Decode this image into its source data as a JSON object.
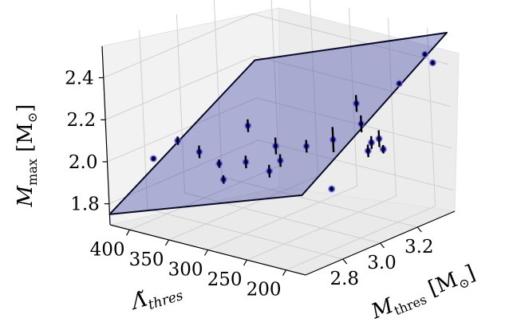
{
  "chart_data": {
    "type": "scatter3d",
    "title": "",
    "x_axis": {
      "label_main": "M",
      "label_sub": "thres",
      "label_unit": "[M",
      "label_unit_sub": "⊙",
      "label_close": "]",
      "ticks": [
        "2.8",
        "3.0",
        "3.2"
      ],
      "range": [
        2.6,
        3.4
      ]
    },
    "y_axis": {
      "label_main": "Λ̃",
      "label_sub": "thres",
      "ticks": [
        "400",
        "350",
        "300",
        "250",
        "200"
      ],
      "range": [
        175,
        425
      ]
    },
    "z_axis": {
      "label_main": "M",
      "label_sub": "max",
      "label_unit": "[M",
      "label_unit_sub": "⊙",
      "label_close": "]",
      "ticks": [
        "1.8",
        "2.0",
        "2.2",
        "2.4"
      ],
      "range": [
        1.7,
        2.55
      ]
    },
    "grid": true,
    "plane": {
      "corners": [
        {
          "x": 2.6,
          "y": 425,
          "z": 1.75
        },
        {
          "x": 3.4,
          "y": 425,
          "z": 2.18
        },
        {
          "x": 3.4,
          "y": 175,
          "z": 2.55
        },
        {
          "x": 2.6,
          "y": 175,
          "z": 2.08
        }
      ],
      "fill": "#3b3fa3",
      "edge": "#0a0a2a"
    },
    "points": [
      {
        "x": 2.62,
        "y": 370,
        "z": 2.06,
        "err": 0.01
      },
      {
        "x": 2.63,
        "y": 340,
        "z": 2.17,
        "err": 0.02
      },
      {
        "x": 2.7,
        "y": 330,
        "z": 2.1,
        "err": 0.03
      },
      {
        "x": 2.68,
        "y": 300,
        "z": 2.08,
        "err": 0.02
      },
      {
        "x": 2.76,
        "y": 315,
        "z": 1.96,
        "err": 0.02
      },
      {
        "x": 2.78,
        "y": 290,
        "z": 2.06,
        "err": 0.03
      },
      {
        "x": 2.84,
        "y": 300,
        "z": 2.2,
        "err": 0.03
      },
      {
        "x": 2.82,
        "y": 270,
        "z": 2.02,
        "err": 0.03
      },
      {
        "x": 2.86,
        "y": 265,
        "z": 2.06,
        "err": 0.03
      },
      {
        "x": 2.9,
        "y": 280,
        "z": 2.1,
        "err": 0.04
      },
      {
        "x": 2.96,
        "y": 255,
        "z": 2.1,
        "err": 0.03
      },
      {
        "x": 2.92,
        "y": 215,
        "z": 1.95,
        "err": 0.01
      },
      {
        "x": 3.0,
        "y": 230,
        "z": 2.14,
        "err": 0.06
      },
      {
        "x": 3.05,
        "y": 205,
        "z": 2.22,
        "err": 0.04
      },
      {
        "x": 3.07,
        "y": 215,
        "z": 2.3,
        "err": 0.04
      },
      {
        "x": 3.08,
        "y": 205,
        "z": 2.08,
        "err": 0.03
      },
      {
        "x": 3.1,
        "y": 195,
        "z": 2.14,
        "err": 0.04
      },
      {
        "x": 3.12,
        "y": 210,
        "z": 2.1,
        "err": 0.03
      },
      {
        "x": 3.14,
        "y": 200,
        "z": 2.07,
        "err": 0.02
      },
      {
        "x": 3.28,
        "y": 210,
        "z": 2.32,
        "err": 0.01
      },
      {
        "x": 3.3,
        "y": 180,
        "z": 2.48,
        "err": 0.01
      },
      {
        "x": 3.38,
        "y": 190,
        "z": 2.4,
        "err": 0.01
      }
    ],
    "colors": {
      "point_fill": "#0a0aa0",
      "point_halo": "#6a6ae0",
      "errorbar": "#000000",
      "axis": "#000000",
      "grid": "#cfcfcf"
    }
  }
}
